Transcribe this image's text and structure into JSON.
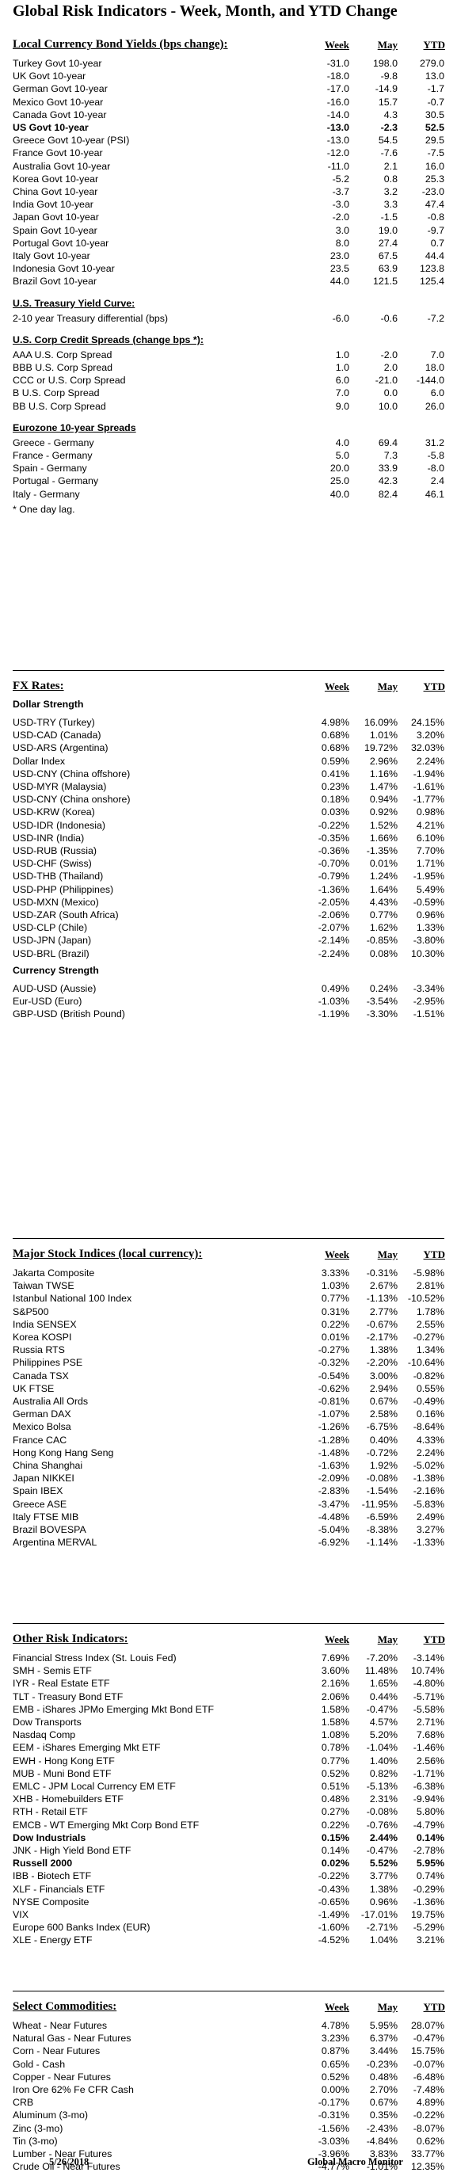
{
  "title": "Global Risk Indicators - Week, Month, and YTD Change",
  "sections": [
    {
      "key": "bonds",
      "title": "Local Currency Bond Yields (bps change):",
      "headers": [
        "Week",
        "May",
        "YTD"
      ],
      "groups": [
        {
          "subtitle": "",
          "rows": [
            {
              "name": "Turkey Govt 10-year",
              "week": "-31.0",
              "month": "198.0",
              "ytd": "279.0"
            },
            {
              "name": "UK Govt 10-year",
              "week": "-18.0",
              "month": "-9.8",
              "ytd": "13.0"
            },
            {
              "name": "German Govt 10-year",
              "week": "-17.0",
              "month": "-14.9",
              "ytd": "-1.7"
            },
            {
              "name": "Mexico Govt 10-year",
              "week": "-16.0",
              "month": "15.7",
              "ytd": "-0.7"
            },
            {
              "name": "Canada Govt 10-year",
              "week": "-14.0",
              "month": "4.3",
              "ytd": "30.5"
            },
            {
              "name": "US Govt 10-year",
              "week": "-13.0",
              "month": "-2.3",
              "ytd": "52.5",
              "bold": true
            },
            {
              "name": "Greece Govt 10-year (PSI)",
              "week": "-13.0",
              "month": "54.5",
              "ytd": "29.5"
            },
            {
              "name": "France Govt 10-year",
              "week": "-12.0",
              "month": "-7.6",
              "ytd": "-7.5"
            },
            {
              "name": "Australia Govt 10-year",
              "week": "-11.0",
              "month": "2.1",
              "ytd": "16.0"
            },
            {
              "name": "Korea Govt 10-year",
              "week": "-5.2",
              "month": "0.8",
              "ytd": "25.3"
            },
            {
              "name": "China Govt 10-year",
              "week": "-3.7",
              "month": "3.2",
              "ytd": "-23.0"
            },
            {
              "name": "India Govt 10-year",
              "week": "-3.0",
              "month": "3.3",
              "ytd": "47.4"
            },
            {
              "name": "Japan Govt 10-year",
              "week": "-2.0",
              "month": "-1.5",
              "ytd": "-0.8"
            },
            {
              "name": "Spain Govt 10-year",
              "week": "3.0",
              "month": "19.0",
              "ytd": "-9.7"
            },
            {
              "name": "Portugal Govt 10-year",
              "week": "8.0",
              "month": "27.4",
              "ytd": "0.7"
            },
            {
              "name": "Italy Govt 10-year",
              "week": "23.0",
              "month": "67.5",
              "ytd": "44.4"
            },
            {
              "name": "Indonesia Govt 10-year",
              "week": "23.5",
              "month": "63.9",
              "ytd": "123.8"
            },
            {
              "name": "Brazil Govt 10-year",
              "week": "44.0",
              "month": "121.5",
              "ytd": "125.4"
            }
          ]
        },
        {
          "subtitle": "U.S. Treasury Yield Curve:",
          "rows": [
            {
              "name": "2-10 year Treasury differential (bps)",
              "week": "-6.0",
              "month": "-0.6",
              "ytd": "-7.2"
            }
          ]
        },
        {
          "subtitle": "U.S. Corp Credit Spreads (change bps *):",
          "rows": [
            {
              "name": "AAA U.S. Corp Spread",
              "week": "1.0",
              "month": "-2.0",
              "ytd": "7.0"
            },
            {
              "name": "BBB U.S. Corp Spread",
              "week": "1.0",
              "month": "2.0",
              "ytd": "18.0"
            },
            {
              "name": "CCC or U.S. Corp Spread",
              "week": "6.0",
              "month": "-21.0",
              "ytd": "-144.0"
            },
            {
              "name": "B U.S. Corp Spread",
              "week": "7.0",
              "month": "0.0",
              "ytd": "6.0"
            },
            {
              "name": "BB U.S. Corp Spread",
              "week": "9.0",
              "month": "10.0",
              "ytd": "26.0"
            }
          ]
        },
        {
          "subtitle": "Eurozone 10-year Spreads",
          "rows": [
            {
              "name": "Greece - Germany",
              "week": "4.0",
              "month": "69.4",
              "ytd": "31.2"
            },
            {
              "name": "France - Germany",
              "week": "5.0",
              "month": "7.3",
              "ytd": "-5.8"
            },
            {
              "name": "Spain - Germany",
              "week": "20.0",
              "month": "33.9",
              "ytd": "-8.0"
            },
            {
              "name": "Portugal - Germany",
              "week": "25.0",
              "month": "42.3",
              "ytd": "2.4"
            },
            {
              "name": "Italy - Germany",
              "week": "40.0",
              "month": "82.4",
              "ytd": "46.1"
            }
          ]
        }
      ],
      "note": "* One day lag."
    },
    {
      "key": "fx",
      "title": "FX Rates:",
      "headers": [
        "Week",
        "May",
        "YTD"
      ],
      "groups": [
        {
          "subtitle": "Dollar Strength",
          "rows": [
            {
              "name": "USD-TRY (Turkey)",
              "week": "4.98%",
              "month": "16.09%",
              "ytd": "24.15%"
            },
            {
              "name": "USD-CAD (Canada)",
              "week": "0.68%",
              "month": "1.01%",
              "ytd": "3.20%"
            },
            {
              "name": "USD-ARS (Argentina)",
              "week": "0.68%",
              "month": "19.72%",
              "ytd": "32.03%"
            },
            {
              "name": "Dollar Index",
              "week": "0.59%",
              "month": "2.96%",
              "ytd": "2.24%"
            },
            {
              "name": "USD-CNY (China offshore)",
              "week": "0.41%",
              "month": "1.16%",
              "ytd": "-1.94%"
            },
            {
              "name": "USD-MYR (Malaysia)",
              "week": "0.23%",
              "month": "1.47%",
              "ytd": "-1.61%"
            },
            {
              "name": "USD-CNY (China onshore)",
              "week": "0.18%",
              "month": "0.94%",
              "ytd": "-1.77%"
            },
            {
              "name": "USD-KRW (Korea)",
              "week": "0.03%",
              "month": "0.92%",
              "ytd": "0.98%"
            },
            {
              "name": "USD-IDR (Indonesia)",
              "week": "-0.22%",
              "month": "1.52%",
              "ytd": "4.21%"
            },
            {
              "name": "USD-INR (India)",
              "week": "-0.35%",
              "month": "1.66%",
              "ytd": "6.10%"
            },
            {
              "name": "USD-RUB (Russia)",
              "week": "-0.36%",
              "month": "-1.35%",
              "ytd": "7.70%"
            },
            {
              "name": "USD-CHF (Swiss)",
              "week": "-0.70%",
              "month": "0.01%",
              "ytd": "1.71%"
            },
            {
              "name": "USD-THB (Thailand)",
              "week": "-0.79%",
              "month": "1.24%",
              "ytd": "-1.95%"
            },
            {
              "name": "USD-PHP (Philippines)",
              "week": "-1.36%",
              "month": "1.64%",
              "ytd": "5.49%"
            },
            {
              "name": "USD-MXN (Mexico)",
              "week": "-2.05%",
              "month": "4.43%",
              "ytd": "-0.59%"
            },
            {
              "name": "USD-ZAR (South Africa)",
              "week": "-2.06%",
              "month": "0.77%",
              "ytd": "0.96%"
            },
            {
              "name": "USD-CLP (Chile)",
              "week": "-2.07%",
              "month": "1.62%",
              "ytd": "1.33%"
            },
            {
              "name": "USD-JPN (Japan)",
              "week": "-2.14%",
              "month": "-0.85%",
              "ytd": "-3.80%"
            },
            {
              "name": "USD-BRL (Brazil)",
              "week": "-2.24%",
              "month": "0.08%",
              "ytd": "10.30%"
            }
          ]
        },
        {
          "subtitle": "Currency Strength",
          "rows": [
            {
              "name": "AUD-USD (Aussie)",
              "week": "0.49%",
              "month": "0.24%",
              "ytd": "-3.34%"
            },
            {
              "name": "Eur-USD (Euro)",
              "week": "-1.03%",
              "month": "-3.54%",
              "ytd": "-2.95%"
            },
            {
              "name": "GBP-USD (British Pound)",
              "week": "-1.19%",
              "month": "-3.30%",
              "ytd": "-1.51%"
            }
          ]
        }
      ],
      "note": ""
    },
    {
      "key": "stocks",
      "title": "Major Stock Indices (local currency):",
      "headers": [
        "Week",
        "May",
        "YTD"
      ],
      "groups": [
        {
          "subtitle": "",
          "rows": [
            {
              "name": "Jakarta Composite",
              "week": "3.33%",
              "month": "-0.31%",
              "ytd": "-5.98%"
            },
            {
              "name": "Taiwan  TWSE",
              "week": "1.03%",
              "month": "2.67%",
              "ytd": "2.81%"
            },
            {
              "name": "Istanbul National 100 Index",
              "week": "0.77%",
              "month": "-1.13%",
              "ytd": "-10.52%"
            },
            {
              "name": "S&P500",
              "week": "0.31%",
              "month": "2.77%",
              "ytd": "1.78%"
            },
            {
              "name": "India SENSEX",
              "week": "0.22%",
              "month": "-0.67%",
              "ytd": "2.55%"
            },
            {
              "name": "Korea KOSPI",
              "week": "0.01%",
              "month": "-2.17%",
              "ytd": "-0.27%"
            },
            {
              "name": "Russia RTS",
              "week": "-0.27%",
              "month": "1.38%",
              "ytd": "1.34%"
            },
            {
              "name": "Philippines PSE",
              "week": "-0.32%",
              "month": "-2.20%",
              "ytd": "-10.64%"
            },
            {
              "name": "Canada TSX",
              "week": "-0.54%",
              "month": "3.00%",
              "ytd": "-0.82%"
            },
            {
              "name": "UK FTSE",
              "week": "-0.62%",
              "month": "2.94%",
              "ytd": "0.55%"
            },
            {
              "name": "Australia All Ords",
              "week": "-0.81%",
              "month": "0.67%",
              "ytd": "-0.49%"
            },
            {
              "name": "German DAX",
              "week": "-1.07%",
              "month": "2.58%",
              "ytd": "0.16%"
            },
            {
              "name": "Mexico Bolsa",
              "week": "-1.26%",
              "month": "-6.75%",
              "ytd": "-8.64%"
            },
            {
              "name": "France CAC",
              "week": "-1.28%",
              "month": "0.40%",
              "ytd": "4.33%"
            },
            {
              "name": "Hong Kong Hang Seng",
              "week": "-1.48%",
              "month": "-0.72%",
              "ytd": "2.24%"
            },
            {
              "name": "China Shanghai",
              "week": "-1.63%",
              "month": "1.92%",
              "ytd": "-5.02%"
            },
            {
              "name": "Japan NIKKEI",
              "week": "-2.09%",
              "month": "-0.08%",
              "ytd": "-1.38%"
            },
            {
              "name": "Spain IBEX",
              "week": "-2.83%",
              "month": "-1.54%",
              "ytd": "-2.16%"
            },
            {
              "name": "Greece ASE",
              "week": "-3.47%",
              "month": "-11.95%",
              "ytd": "-5.83%"
            },
            {
              "name": "Italy FTSE MIB",
              "week": "-4.48%",
              "month": "-6.59%",
              "ytd": "2.49%"
            },
            {
              "name": "Brazil BOVESPA",
              "week": "-5.04%",
              "month": "-8.38%",
              "ytd": "3.27%"
            },
            {
              "name": "Argentina MERVAL",
              "week": "-6.92%",
              "month": "-1.14%",
              "ytd": "-1.33%"
            }
          ]
        }
      ],
      "note": ""
    },
    {
      "key": "risk",
      "title": "Other Risk Indicators:",
      "headers": [
        "Week",
        "May",
        "YTD"
      ],
      "groups": [
        {
          "subtitle": "",
          "rows": [
            {
              "name": "Financial Stress Index (St. Louis Fed)",
              "week": "7.69%",
              "month": "-7.20%",
              "ytd": "-3.14%"
            },
            {
              "name": "SMH - Semis ETF",
              "week": "3.60%",
              "month": "11.48%",
              "ytd": "10.74%"
            },
            {
              "name": "IYR - Real Estate ETF",
              "week": "2.16%",
              "month": "1.65%",
              "ytd": "-4.80%"
            },
            {
              "name": "TLT - Treasury Bond ETF",
              "week": "2.06%",
              "month": "0.44%",
              "ytd": "-5.71%"
            },
            {
              "name": "EMB - iShares JPMo Emerging Mkt Bond ETF",
              "week": "1.58%",
              "month": "-0.47%",
              "ytd": "-5.58%"
            },
            {
              "name": "Dow Transports",
              "week": "1.58%",
              "month": "4.57%",
              "ytd": "2.71%"
            },
            {
              "name": "Nasdaq Comp",
              "week": "1.08%",
              "month": "5.20%",
              "ytd": "7.68%"
            },
            {
              "name": "EEM - iShares Emerging Mkt ETF",
              "week": "0.78%",
              "month": "-1.04%",
              "ytd": "-1.46%"
            },
            {
              "name": "EWH - Hong Kong ETF",
              "week": "0.77%",
              "month": "1.40%",
              "ytd": "2.56%"
            },
            {
              "name": "MUB - Muni Bond ETF",
              "week": "0.52%",
              "month": "0.82%",
              "ytd": "-1.71%"
            },
            {
              "name": "EMLC - JPM Local Currency EM ETF",
              "week": "0.51%",
              "month": "-5.13%",
              "ytd": "-6.38%"
            },
            {
              "name": "XHB - Homebuilders ETF",
              "week": "0.48%",
              "month": "2.31%",
              "ytd": "-9.94%"
            },
            {
              "name": "RTH - Retail ETF",
              "week": "0.27%",
              "month": "-0.08%",
              "ytd": "5.80%"
            },
            {
              "name": "EMCB - WT Emerging Mkt Corp Bond ETF",
              "week": "0.22%",
              "month": "-0.76%",
              "ytd": "-4.79%"
            },
            {
              "name": "Dow Industrials",
              "week": "0.15%",
              "month": "2.44%",
              "ytd": "0.14%",
              "bold": true
            },
            {
              "name": "JNK - High Yield Bond ETF",
              "week": "0.14%",
              "month": "-0.47%",
              "ytd": "-2.78%"
            },
            {
              "name": "Russell 2000",
              "week": "0.02%",
              "month": "5.52%",
              "ytd": "5.95%",
              "bold": true
            },
            {
              "name": "IBB - Biotech ETF",
              "week": "-0.22%",
              "month": "3.77%",
              "ytd": "0.74%"
            },
            {
              "name": "XLF - Financials ETF",
              "week": "-0.43%",
              "month": "1.38%",
              "ytd": "-0.29%"
            },
            {
              "name": "NYSE Composite",
              "week": "-0.65%",
              "month": "0.96%",
              "ytd": "-1.36%"
            },
            {
              "name": "VIX",
              "week": "-1.49%",
              "month": "-17.01%",
              "ytd": "19.75%"
            },
            {
              "name": "Europe 600 Banks Index (EUR)",
              "week": "-1.60%",
              "month": "-2.71%",
              "ytd": "-5.29%"
            },
            {
              "name": "XLE - Energy ETF",
              "week": "-4.52%",
              "month": "1.04%",
              "ytd": "3.21%"
            }
          ]
        }
      ],
      "note": ""
    },
    {
      "key": "commod",
      "title": "Select Commodities:",
      "headers": [
        "Week",
        "May",
        "YTD"
      ],
      "groups": [
        {
          "subtitle": "",
          "rows": [
            {
              "name": "Wheat - Near Futures",
              "week": "4.78%",
              "month": "5.95%",
              "ytd": "28.07%"
            },
            {
              "name": "Natural Gas - Near Futures",
              "week": "3.23%",
              "month": "6.37%",
              "ytd": "-0.47%"
            },
            {
              "name": "Corn - Near Futures",
              "week": "0.87%",
              "month": "3.44%",
              "ytd": "15.75%"
            },
            {
              "name": "Gold - Cash",
              "week": "0.65%",
              "month": "-0.23%",
              "ytd": "-0.07%"
            },
            {
              "name": "Copper - Near Futures",
              "week": "0.52%",
              "month": "0.48%",
              "ytd": "-6.48%"
            },
            {
              "name": "Iron Ore 62% Fe CFR Cash",
              "week": "0.00%",
              "month": "2.70%",
              "ytd": "-7.48%"
            },
            {
              "name": "CRB",
              "week": "-0.17%",
              "month": "0.67%",
              "ytd": "4.89%"
            },
            {
              "name": "Aluminum (3-mo)",
              "week": "-0.31%",
              "month": "0.35%",
              "ytd": "-0.22%"
            },
            {
              "name": "Zinc (3-mo)",
              "week": "-1.56%",
              "month": "-2.43%",
              "ytd": "-8.07%"
            },
            {
              "name": "Tin (3-mo)",
              "week": "-3.03%",
              "month": "-4.84%",
              "ytd": "0.62%"
            },
            {
              "name": "Lumber - Near Futures",
              "week": "-3.96%",
              "month": "3.83%",
              "ytd": "33.77%"
            },
            {
              "name": "Crude Oil - Near Futures",
              "week": "-4.77%",
              "month": "-1.01%",
              "ytd": "12.35%"
            }
          ]
        }
      ],
      "note": ""
    }
  ],
  "footer": {
    "date": "5/26/2018",
    "brand": "Global Macro Monitor"
  }
}
